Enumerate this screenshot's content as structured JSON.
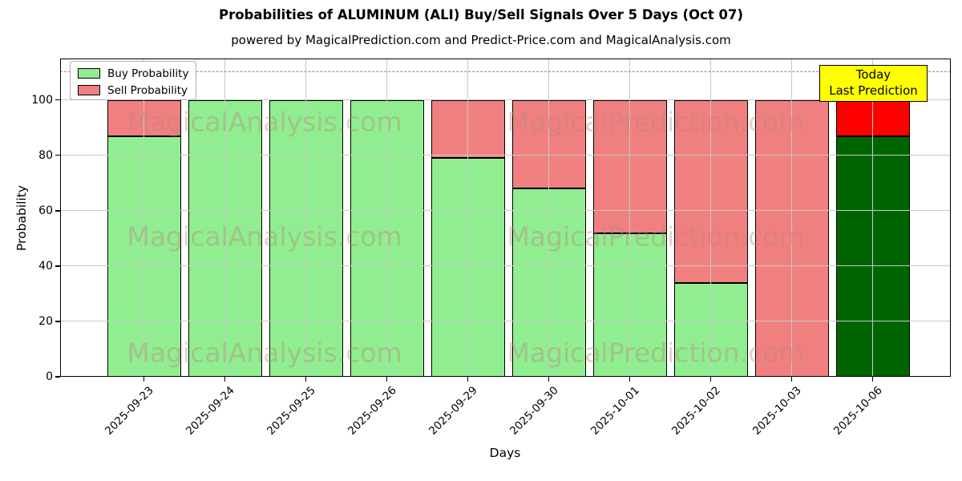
{
  "chart_data": {
    "type": "bar",
    "stacked": true,
    "title": "Probabilities of ALUMINUM (ALI) Buy/Sell Signals Over 5 Days (Oct 07)",
    "subtitle": "powered by MagicalPrediction.com and Predict-Price.com and MagicalAnalysis.com",
    "categories": [
      "2025-09-23",
      "2025-09-24",
      "2025-09-25",
      "2025-09-26",
      "2025-09-29",
      "2025-09-30",
      "2025-10-01",
      "2025-10-02",
      "2025-10-03",
      "2025-10-06"
    ],
    "series": [
      {
        "name": "Buy Probability",
        "color": "#90EE90",
        "values": [
          87,
          100,
          100,
          100,
          79,
          68,
          52,
          34,
          0,
          87
        ]
      },
      {
        "name": "Sell Probability",
        "color": "#F08080",
        "values": [
          13,
          0,
          0,
          0,
          21,
          32,
          48,
          66,
          100,
          13
        ]
      }
    ],
    "today_index": 9,
    "today_colors": {
      "buy": "#006400",
      "sell": "#FF0000"
    },
    "xlabel": "Days",
    "ylabel": "Probability",
    "yticks": [
      0,
      20,
      40,
      60,
      80,
      100
    ],
    "ylim": [
      0,
      115
    ],
    "grid": true,
    "legend_position": "upper-left",
    "dashed_line_y": 110,
    "annotation": {
      "line1": "Today",
      "line2": "Last Prediction",
      "bg_color": "#FFFF00"
    },
    "watermarks": [
      "MagicalAnalysis.com",
      "MagicalPrediction.com"
    ]
  },
  "colors": {
    "bar_edge": "#000000",
    "grid": "#c9c9c9",
    "dashed_line": "#8a8a8a",
    "annotation_bg": "#FFFF00",
    "watermark": "rgba(187,129,129,0.38)"
  }
}
